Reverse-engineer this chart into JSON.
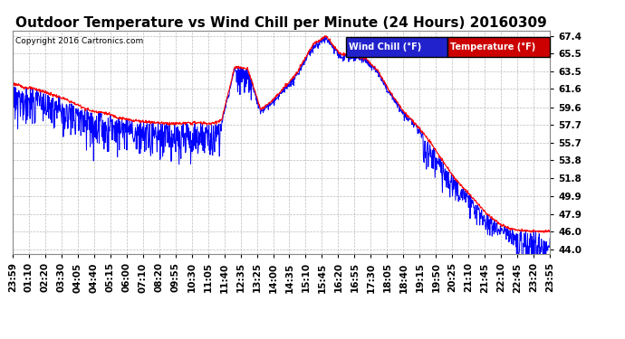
{
  "title": "Outdoor Temperature vs Wind Chill per Minute (24 Hours) 20160309",
  "copyright": "Copyright 2016 Cartronics.com",
  "ylabel_ticks": [
    44.0,
    46.0,
    47.9,
    49.9,
    51.8,
    53.8,
    55.7,
    57.7,
    59.6,
    61.6,
    63.5,
    65.5,
    67.4
  ],
  "ylim_min": 43.5,
  "ylim_max": 68.0,
  "x_labels": [
    "23:59",
    "01:10",
    "02:20",
    "03:30",
    "04:05",
    "04:40",
    "05:15",
    "06:00",
    "07:10",
    "08:20",
    "09:55",
    "10:30",
    "11:05",
    "11:40",
    "12:35",
    "13:25",
    "14:00",
    "14:35",
    "15:10",
    "15:45",
    "16:20",
    "16:55",
    "17:30",
    "18:05",
    "18:40",
    "19:15",
    "19:50",
    "20:25",
    "21:10",
    "21:45",
    "22:10",
    "22:45",
    "23:20",
    "23:55"
  ],
  "bg_color": "#ffffff",
  "grid_color": "#bbbbbb",
  "wind_chill_color": "#0000ff",
  "temp_color": "#ff0000",
  "legend_wind_bg": "#2222cc",
  "legend_temp_bg": "#cc0000",
  "title_fontsize": 11,
  "tick_fontsize": 7.5,
  "figsize": [
    6.9,
    3.75
  ],
  "dpi": 100
}
